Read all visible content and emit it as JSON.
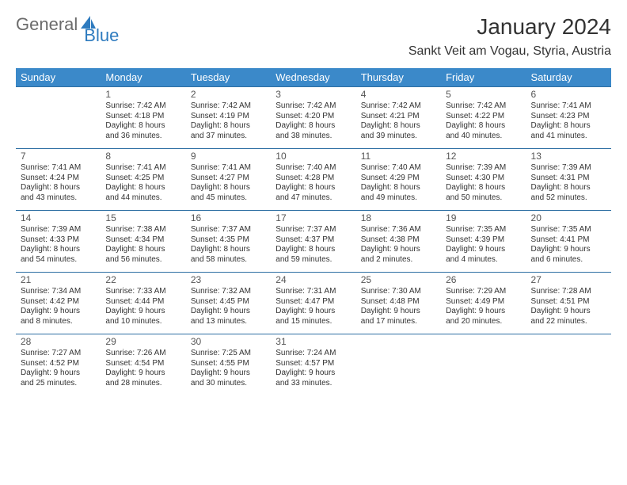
{
  "logo": {
    "text1": "General",
    "text2": "Blue"
  },
  "title": "January 2024",
  "location": "Sankt Veit am Vogau, Styria, Austria",
  "colors": {
    "header_bg": "#3b89c9",
    "header_text": "#ffffff",
    "row_border": "#2e6fa3",
    "body_text": "#333333",
    "logo_gray": "#6b6b6b",
    "logo_blue": "#2e7bbf",
    "page_bg": "#ffffff"
  },
  "fonts": {
    "title_size_pt": 21,
    "location_size_pt": 12,
    "header_size_pt": 10,
    "daynum_size_pt": 9,
    "cell_size_pt": 7.5
  },
  "weekdays": [
    "Sunday",
    "Monday",
    "Tuesday",
    "Wednesday",
    "Thursday",
    "Friday",
    "Saturday"
  ],
  "weeks": [
    [
      null,
      {
        "n": "1",
        "sr": "Sunrise: 7:42 AM",
        "ss": "Sunset: 4:18 PM",
        "d1": "Daylight: 8 hours",
        "d2": "and 36 minutes."
      },
      {
        "n": "2",
        "sr": "Sunrise: 7:42 AM",
        "ss": "Sunset: 4:19 PM",
        "d1": "Daylight: 8 hours",
        "d2": "and 37 minutes."
      },
      {
        "n": "3",
        "sr": "Sunrise: 7:42 AM",
        "ss": "Sunset: 4:20 PM",
        "d1": "Daylight: 8 hours",
        "d2": "and 38 minutes."
      },
      {
        "n": "4",
        "sr": "Sunrise: 7:42 AM",
        "ss": "Sunset: 4:21 PM",
        "d1": "Daylight: 8 hours",
        "d2": "and 39 minutes."
      },
      {
        "n": "5",
        "sr": "Sunrise: 7:42 AM",
        "ss": "Sunset: 4:22 PM",
        "d1": "Daylight: 8 hours",
        "d2": "and 40 minutes."
      },
      {
        "n": "6",
        "sr": "Sunrise: 7:41 AM",
        "ss": "Sunset: 4:23 PM",
        "d1": "Daylight: 8 hours",
        "d2": "and 41 minutes."
      }
    ],
    [
      {
        "n": "7",
        "sr": "Sunrise: 7:41 AM",
        "ss": "Sunset: 4:24 PM",
        "d1": "Daylight: 8 hours",
        "d2": "and 43 minutes."
      },
      {
        "n": "8",
        "sr": "Sunrise: 7:41 AM",
        "ss": "Sunset: 4:25 PM",
        "d1": "Daylight: 8 hours",
        "d2": "and 44 minutes."
      },
      {
        "n": "9",
        "sr": "Sunrise: 7:41 AM",
        "ss": "Sunset: 4:27 PM",
        "d1": "Daylight: 8 hours",
        "d2": "and 45 minutes."
      },
      {
        "n": "10",
        "sr": "Sunrise: 7:40 AM",
        "ss": "Sunset: 4:28 PM",
        "d1": "Daylight: 8 hours",
        "d2": "and 47 minutes."
      },
      {
        "n": "11",
        "sr": "Sunrise: 7:40 AM",
        "ss": "Sunset: 4:29 PM",
        "d1": "Daylight: 8 hours",
        "d2": "and 49 minutes."
      },
      {
        "n": "12",
        "sr": "Sunrise: 7:39 AM",
        "ss": "Sunset: 4:30 PM",
        "d1": "Daylight: 8 hours",
        "d2": "and 50 minutes."
      },
      {
        "n": "13",
        "sr": "Sunrise: 7:39 AM",
        "ss": "Sunset: 4:31 PM",
        "d1": "Daylight: 8 hours",
        "d2": "and 52 minutes."
      }
    ],
    [
      {
        "n": "14",
        "sr": "Sunrise: 7:39 AM",
        "ss": "Sunset: 4:33 PM",
        "d1": "Daylight: 8 hours",
        "d2": "and 54 minutes."
      },
      {
        "n": "15",
        "sr": "Sunrise: 7:38 AM",
        "ss": "Sunset: 4:34 PM",
        "d1": "Daylight: 8 hours",
        "d2": "and 56 minutes."
      },
      {
        "n": "16",
        "sr": "Sunrise: 7:37 AM",
        "ss": "Sunset: 4:35 PM",
        "d1": "Daylight: 8 hours",
        "d2": "and 58 minutes."
      },
      {
        "n": "17",
        "sr": "Sunrise: 7:37 AM",
        "ss": "Sunset: 4:37 PM",
        "d1": "Daylight: 8 hours",
        "d2": "and 59 minutes."
      },
      {
        "n": "18",
        "sr": "Sunrise: 7:36 AM",
        "ss": "Sunset: 4:38 PM",
        "d1": "Daylight: 9 hours",
        "d2": "and 2 minutes."
      },
      {
        "n": "19",
        "sr": "Sunrise: 7:35 AM",
        "ss": "Sunset: 4:39 PM",
        "d1": "Daylight: 9 hours",
        "d2": "and 4 minutes."
      },
      {
        "n": "20",
        "sr": "Sunrise: 7:35 AM",
        "ss": "Sunset: 4:41 PM",
        "d1": "Daylight: 9 hours",
        "d2": "and 6 minutes."
      }
    ],
    [
      {
        "n": "21",
        "sr": "Sunrise: 7:34 AM",
        "ss": "Sunset: 4:42 PM",
        "d1": "Daylight: 9 hours",
        "d2": "and 8 minutes."
      },
      {
        "n": "22",
        "sr": "Sunrise: 7:33 AM",
        "ss": "Sunset: 4:44 PM",
        "d1": "Daylight: 9 hours",
        "d2": "and 10 minutes."
      },
      {
        "n": "23",
        "sr": "Sunrise: 7:32 AM",
        "ss": "Sunset: 4:45 PM",
        "d1": "Daylight: 9 hours",
        "d2": "and 13 minutes."
      },
      {
        "n": "24",
        "sr": "Sunrise: 7:31 AM",
        "ss": "Sunset: 4:47 PM",
        "d1": "Daylight: 9 hours",
        "d2": "and 15 minutes."
      },
      {
        "n": "25",
        "sr": "Sunrise: 7:30 AM",
        "ss": "Sunset: 4:48 PM",
        "d1": "Daylight: 9 hours",
        "d2": "and 17 minutes."
      },
      {
        "n": "26",
        "sr": "Sunrise: 7:29 AM",
        "ss": "Sunset: 4:49 PM",
        "d1": "Daylight: 9 hours",
        "d2": "and 20 minutes."
      },
      {
        "n": "27",
        "sr": "Sunrise: 7:28 AM",
        "ss": "Sunset: 4:51 PM",
        "d1": "Daylight: 9 hours",
        "d2": "and 22 minutes."
      }
    ],
    [
      {
        "n": "28",
        "sr": "Sunrise: 7:27 AM",
        "ss": "Sunset: 4:52 PM",
        "d1": "Daylight: 9 hours",
        "d2": "and 25 minutes."
      },
      {
        "n": "29",
        "sr": "Sunrise: 7:26 AM",
        "ss": "Sunset: 4:54 PM",
        "d1": "Daylight: 9 hours",
        "d2": "and 28 minutes."
      },
      {
        "n": "30",
        "sr": "Sunrise: 7:25 AM",
        "ss": "Sunset: 4:55 PM",
        "d1": "Daylight: 9 hours",
        "d2": "and 30 minutes."
      },
      {
        "n": "31",
        "sr": "Sunrise: 7:24 AM",
        "ss": "Sunset: 4:57 PM",
        "d1": "Daylight: 9 hours",
        "d2": "and 33 minutes."
      },
      null,
      null,
      null
    ]
  ]
}
